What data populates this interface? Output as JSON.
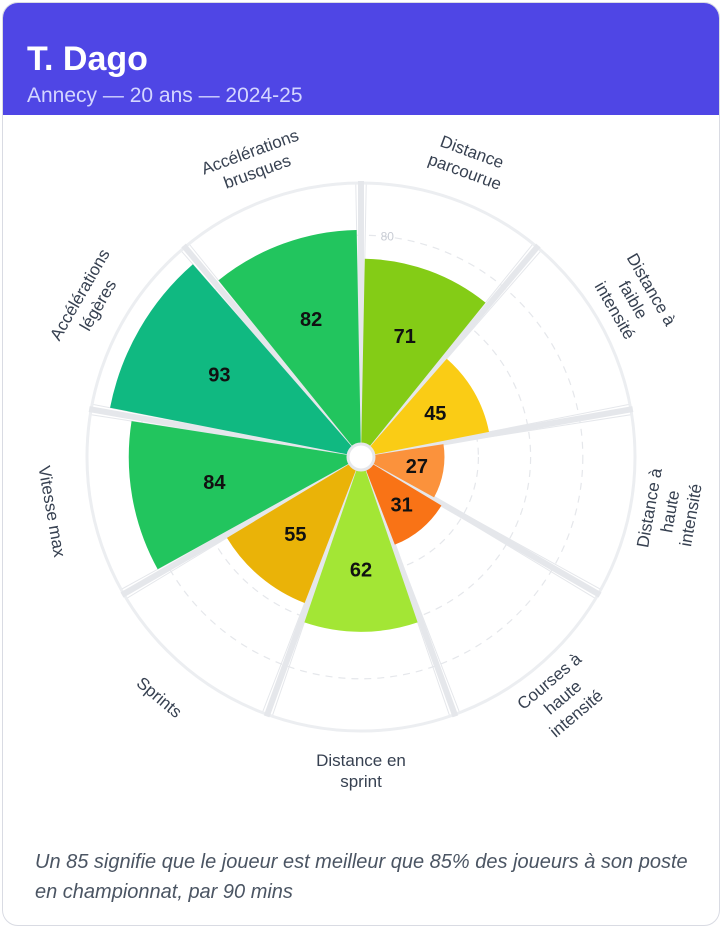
{
  "header": {
    "title": "T. Dago",
    "subtitle": "Annecy — 20 ans — 2024-25"
  },
  "chart_data": {
    "type": "polar-bar",
    "title": "T. Dago",
    "subtitle": "Annecy — 20 ans — 2024-25",
    "radial_range": [
      0,
      100
    ],
    "grid": true,
    "reference_tick": {
      "value": 80,
      "label": "80"
    },
    "categories": [
      {
        "label": "Distance parcourue",
        "lines": [
          "Distance",
          "parcourue"
        ],
        "value": 71,
        "color": "#84cc16"
      },
      {
        "label": "Distance à faible intensité",
        "lines": [
          "Distance à",
          "faible",
          "intensité"
        ],
        "value": 45,
        "color": "#facc15"
      },
      {
        "label": "Distance à haute intensité",
        "lines": [
          "Distance à",
          "haute",
          "intensité"
        ],
        "value": 27,
        "color": "#fb923c"
      },
      {
        "label": "Courses à haute intensité",
        "lines": [
          "Courses à",
          "haute",
          "intensité"
        ],
        "value": 31,
        "color": "#f97316"
      },
      {
        "label": "Distance en sprint",
        "lines": [
          "Distance en",
          "sprint"
        ],
        "value": 62,
        "color": "#a3e635"
      },
      {
        "label": "Sprints",
        "lines": [
          "Sprints"
        ],
        "value": 55,
        "color": "#eab308"
      },
      {
        "label": "Vitesse max",
        "lines": [
          "Vitesse max"
        ],
        "value": 84,
        "color": "#22c55e"
      },
      {
        "label": "Accélérations légères",
        "lines": [
          "Accélérations",
          "légères"
        ],
        "value": 93,
        "color": "#10b981"
      },
      {
        "label": "Accélérations brusques",
        "lines": [
          "Accélérations",
          "brusques"
        ],
        "value": 82,
        "color": "#22c55e"
      }
    ]
  },
  "footnote": "Un 85 signifie que le joueur est meilleur que 85% des joueurs à son poste en championnat, par 90 mins"
}
